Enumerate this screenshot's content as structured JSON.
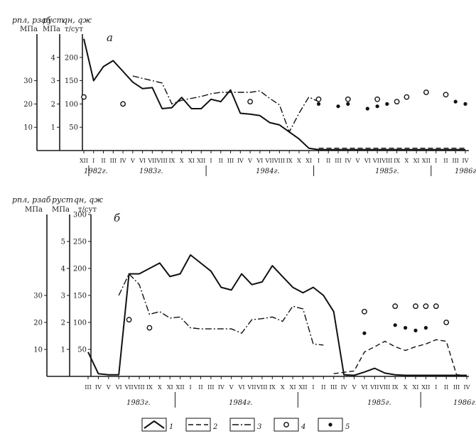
{
  "chart_data": [
    {
      "type": "line",
      "panel_label": "а",
      "axis_headers": {
        "p1": [
          "pпл, pзаб",
          "МПа"
        ],
        "p2": [
          "pуст",
          "МПа"
        ],
        "p3": [
          "qн, qж",
          "т/сут"
        ]
      },
      "y_axes": {
        "pressure": {
          "range": [
            0,
            50
          ],
          "ticks": [
            "10",
            "20",
            "30"
          ]
        },
        "wellhead": {
          "range": [
            0,
            5
          ],
          "ticks": [
            "1",
            "2",
            "3",
            "4"
          ]
        },
        "rate": {
          "range": [
            0,
            250
          ],
          "ticks": [
            "50",
            "100",
            "150",
            "200"
          ]
        }
      },
      "months": [
        "XII",
        "I",
        "II",
        "III",
        "IV",
        "V",
        "VI",
        "VII",
        "VIII",
        "IX",
        "X",
        "XI",
        "XII",
        "I",
        "II",
        "III",
        "IV",
        "V",
        "VI",
        "VII",
        "VIII",
        "IX",
        "X",
        "XI",
        "I",
        "II",
        "III",
        "IV",
        "V",
        "VI",
        "VII",
        "VIII",
        "IX",
        "X",
        "XI",
        "XII",
        "I",
        "II",
        "III",
        "IV"
      ],
      "years": [
        "1982г.",
        "1983г.",
        "1984г.",
        "1985г.",
        "1986г."
      ],
      "series": [
        {
          "legend": "1",
          "style": "solid",
          "axis": "rate",
          "points": [
            [
              0,
              240
            ],
            [
              1,
              150
            ],
            [
              2,
              180
            ],
            [
              3,
              193
            ],
            [
              4,
              170
            ],
            [
              5,
              147
            ],
            [
              6,
              133
            ],
            [
              7,
              135
            ],
            [
              8,
              90
            ],
            [
              9,
              92
            ],
            [
              10,
              114
            ],
            [
              11,
              90
            ],
            [
              12,
              90
            ],
            [
              13,
              110
            ],
            [
              14,
              105
            ],
            [
              15,
              130
            ],
            [
              16,
              80
            ],
            [
              17,
              78
            ],
            [
              18,
              75
            ],
            [
              19,
              60
            ],
            [
              20,
              55
            ],
            [
              21,
              40
            ],
            [
              22,
              25
            ],
            [
              23,
              5
            ],
            [
              24,
              2
            ],
            [
              26,
              2
            ],
            [
              28,
              2
            ],
            [
              30,
              2
            ],
            [
              32,
              2
            ],
            [
              34,
              2
            ],
            [
              36,
              2
            ],
            [
              39,
              2
            ]
          ]
        },
        {
          "legend": "3",
          "style": "dashdot",
          "axis": "rate",
          "points": [
            [
              5,
              160
            ],
            [
              6,
              155
            ],
            [
              7,
              150
            ],
            [
              8,
              145
            ],
            [
              9,
              100
            ],
            [
              10,
              108
            ],
            [
              11,
              112
            ],
            [
              12,
              116
            ],
            [
              13,
              122
            ],
            [
              14,
              125
            ],
            [
              15,
              125
            ],
            [
              16,
              125
            ],
            [
              17,
              125
            ],
            [
              18,
              128
            ],
            [
              19,
              112
            ],
            [
              20,
              98
            ],
            [
              21,
              40
            ],
            [
              22,
              80
            ],
            [
              23,
              115
            ],
            [
              24,
              105
            ]
          ]
        },
        {
          "legend": "2",
          "style": "dashed",
          "axis": "rate",
          "points": [
            [
              24,
              5
            ],
            [
              30,
              5
            ],
            [
              39,
              5
            ]
          ]
        }
      ],
      "markers": [
        {
          "legend": "4",
          "shape": "open",
          "axis": "pressure",
          "points": [
            [
              0,
              23
            ],
            [
              4,
              20
            ],
            [
              17,
              21
            ],
            [
              24,
              22
            ],
            [
              27,
              22
            ],
            [
              30,
              22
            ],
            [
              32,
              21
            ],
            [
              33,
              23
            ],
            [
              35,
              25
            ],
            [
              37,
              24
            ]
          ]
        },
        {
          "legend": "5",
          "shape": "filled",
          "axis": "pressure",
          "points": [
            [
              24,
              20
            ],
            [
              26,
              19
            ],
            [
              27,
              20
            ],
            [
              29,
              18
            ],
            [
              30,
              19
            ],
            [
              31,
              20
            ],
            [
              38,
              21
            ],
            [
              39,
              20
            ]
          ]
        }
      ]
    },
    {
      "type": "line",
      "panel_label": "б",
      "axis_headers": {
        "p1": [
          "pпл, pзаб",
          "МПа"
        ],
        "p2": [
          "pуст",
          "МПа"
        ],
        "p3": [
          "qн, qж",
          "т/сут"
        ]
      },
      "y_axes": {
        "pressure": {
          "range": [
            0,
            60
          ],
          "ticks": [
            "10",
            "20",
            "30"
          ]
        },
        "wellhead": {
          "range": [
            0,
            6
          ],
          "ticks": [
            "1",
            "2",
            "3",
            "4",
            "5"
          ]
        },
        "rate": {
          "range": [
            0,
            300
          ],
          "ticks": [
            "50",
            "100",
            "150",
            "200",
            "250",
            "300"
          ]
        }
      },
      "months": [
        "III",
        "IV",
        "V",
        "VI",
        "VII",
        "VIII",
        "IX",
        "X",
        "XI",
        "XII",
        "I",
        "II",
        "III",
        "IV",
        "V",
        "VI",
        "VII",
        "VIII",
        "IX",
        "X",
        "XI",
        "XII",
        "I",
        "II",
        "III",
        "IV",
        "V",
        "VI",
        "VII",
        "VIII",
        "IX",
        "X",
        "XI",
        "XII",
        "I",
        "II",
        "III",
        "IV"
      ],
      "years": [
        "1983г.",
        "1984г.",
        "1985г.",
        "1986г."
      ],
      "series": [
        {
          "legend": "1",
          "style": "solid",
          "axis": "rate",
          "points": [
            [
              0,
              45
            ],
            [
              1,
              5
            ],
            [
              2,
              3
            ],
            [
              3,
              3
            ],
            [
              4,
              190
            ],
            [
              5,
              190
            ],
            [
              6,
              200
            ],
            [
              7,
              210
            ],
            [
              8,
              185
            ],
            [
              9,
              190
            ],
            [
              10,
              225
            ],
            [
              11,
              210
            ],
            [
              12,
              195
            ],
            [
              13,
              165
            ],
            [
              14,
              160
            ],
            [
              15,
              190
            ],
            [
              16,
              170
            ],
            [
              17,
              175
            ],
            [
              18,
              205
            ],
            [
              19,
              185
            ],
            [
              20,
              165
            ],
            [
              21,
              155
            ],
            [
              22,
              165
            ],
            [
              23,
              150
            ],
            [
              24,
              120
            ],
            [
              25,
              3
            ],
            [
              26,
              2
            ],
            [
              27,
              8
            ],
            [
              28,
              15
            ],
            [
              29,
              6
            ],
            [
              30,
              3
            ],
            [
              31,
              2
            ],
            [
              33,
              2
            ],
            [
              36,
              2
            ],
            [
              37,
              2
            ]
          ]
        },
        {
          "legend": "3",
          "style": "dashdot",
          "axis": "rate",
          "points": [
            [
              3,
              150
            ],
            [
              4,
              190
            ],
            [
              5,
              170
            ],
            [
              6,
              115
            ],
            [
              7,
              120
            ],
            [
              8,
              108
            ],
            [
              9,
              110
            ],
            [
              10,
              90
            ],
            [
              11,
              88
            ],
            [
              12,
              88
            ],
            [
              13,
              88
            ],
            [
              14,
              88
            ],
            [
              15,
              80
            ],
            [
              16,
              105
            ],
            [
              17,
              107
            ],
            [
              18,
              110
            ],
            [
              19,
              102
            ],
            [
              20,
              130
            ],
            [
              21,
              125
            ],
            [
              22,
              60
            ],
            [
              23,
              58
            ]
          ]
        },
        {
          "legend": "2",
          "style": "dashed",
          "axis": "rate",
          "points": [
            [
              24,
              5
            ],
            [
              26,
              10
            ],
            [
              27,
              45
            ],
            [
              28,
              55
            ],
            [
              29,
              65
            ],
            [
              30,
              55
            ],
            [
              31,
              48
            ],
            [
              32,
              55
            ],
            [
              33,
              60
            ],
            [
              34,
              68
            ],
            [
              35,
              65
            ],
            [
              36,
              3
            ],
            [
              37,
              2
            ]
          ]
        }
      ],
      "markers": [
        {
          "legend": "4",
          "shape": "open",
          "axis": "pressure",
          "points": [
            [
              4,
              21
            ],
            [
              6,
              18
            ],
            [
              27,
              24
            ],
            [
              30,
              26
            ],
            [
              32,
              26
            ],
            [
              33,
              26
            ],
            [
              34,
              26
            ],
            [
              35,
              20
            ]
          ]
        },
        {
          "legend": "5",
          "shape": "filled",
          "axis": "pressure",
          "points": [
            [
              27,
              16
            ],
            [
              30,
              19
            ],
            [
              31,
              18
            ],
            [
              32,
              17
            ],
            [
              33,
              18
            ]
          ]
        }
      ]
    }
  ],
  "legend": [
    {
      "label": "1",
      "style": "solid"
    },
    {
      "label": "2",
      "style": "dashed"
    },
    {
      "label": "3",
      "style": "dashdot"
    },
    {
      "label": "4",
      "style": "open-circle"
    },
    {
      "label": "5",
      "style": "filled-circle"
    }
  ]
}
